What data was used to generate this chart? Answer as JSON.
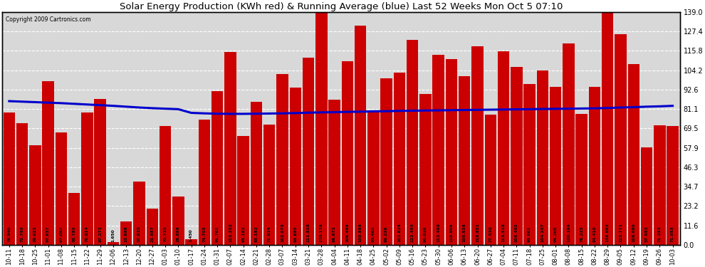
{
  "title": "Solar Energy Production (KWh red) & Running Average (blue) Last 52 Weeks Mon Oct 5 07:10",
  "copyright": "Copyright 2009 Cartronics.com",
  "bar_color": "#cc0000",
  "avg_line_color": "#0000cc",
  "background_color": "#ffffff",
  "plot_bg_color": "#d8d8d8",
  "grid_color": "#ffffff",
  "ylim": [
    0,
    139.0
  ],
  "yticks": [
    0.0,
    11.6,
    23.2,
    34.7,
    46.3,
    57.9,
    69.5,
    81.1,
    92.6,
    104.2,
    115.8,
    127.4,
    139.0
  ],
  "categories": [
    "10-11",
    "10-18",
    "10-25",
    "11-01",
    "11-08",
    "11-15",
    "11-22",
    "11-29",
    "12-06",
    "12-13",
    "12-20",
    "12-27",
    "01-03",
    "01-10",
    "01-17",
    "01-24",
    "01-31",
    "02-07",
    "02-14",
    "02-21",
    "02-28",
    "03-07",
    "03-14",
    "03-21",
    "03-28",
    "04-04",
    "04-11",
    "04-18",
    "04-25",
    "05-02",
    "05-09",
    "05-16",
    "05-23",
    "05-30",
    "06-06",
    "06-13",
    "06-20",
    "06-27",
    "07-04",
    "07-11",
    "07-18",
    "07-25",
    "08-01",
    "08-08",
    "08-15",
    "08-22",
    "08-29",
    "09-05",
    "09-12",
    "09-19",
    "09-26",
    "10-03"
  ],
  "values": [
    78.94,
    72.76,
    59.625,
    97.937,
    67.087,
    30.78,
    78.824,
    87.272,
    1.65,
    13.988,
    37.635,
    21.687,
    70.725,
    28.698,
    3.45,
    74.705,
    91.761,
    115.352,
    65.182,
    85.182,
    71.924,
    102.078,
    93.885,
    111.818,
    170.178,
    86.671,
    109.466,
    130.866,
    80.462,
    99.226,
    102.624,
    122.463,
    90.026,
    113.498,
    110.905,
    100.538,
    118.651,
    77.558,
    115.518,
    106.402,
    95.861,
    104.267,
    94.205,
    120.394,
    78.225,
    94.416,
    138.963,
    125.771,
    108.08,
    57.985,
    71.253,
    71.053
  ],
  "avg_values": [
    85.8,
    85.5,
    85.2,
    84.9,
    84.6,
    84.2,
    83.8,
    83.4,
    83.0,
    82.5,
    82.0,
    81.6,
    81.3,
    81.0,
    78.8,
    78.5,
    78.3,
    78.2,
    78.2,
    78.3,
    78.4,
    78.5,
    78.7,
    78.9,
    79.1,
    79.2,
    79.4,
    79.5,
    79.7,
    79.8,
    80.0,
    80.1,
    80.2,
    80.3,
    80.4,
    80.5,
    80.6,
    80.7,
    80.8,
    80.9,
    81.0,
    81.1,
    81.2,
    81.3,
    81.4,
    81.5,
    81.7,
    82.0,
    82.2,
    82.5,
    82.7,
    83.0
  ],
  "value_labels": [
    "78.940",
    "72.760",
    "59.625",
    "97.937",
    "67.087",
    "30.780",
    "78.824",
    "87.272",
    "1.650",
    "13.988",
    "37.635",
    "21.687",
    "70.725",
    "28.698",
    "3.450",
    "74.705",
    "91.761",
    "115.352",
    "65.182",
    "85.182",
    "71.924",
    "102.078",
    "93.885",
    "111.818",
    "170.178",
    "86.671",
    "109.466",
    "130.866",
    "80.462",
    "99.226",
    "102.624",
    "122.463",
    "90.026",
    "113.498",
    "110.905",
    "100.538",
    "118.651",
    "77.558",
    "115.518",
    "106.402",
    "95.861",
    "104.267",
    "94.205",
    "120.394",
    "78.225",
    "94.416",
    "138.963",
    "125.771",
    "108.080",
    "57.985",
    "71.253",
    "71.053"
  ]
}
